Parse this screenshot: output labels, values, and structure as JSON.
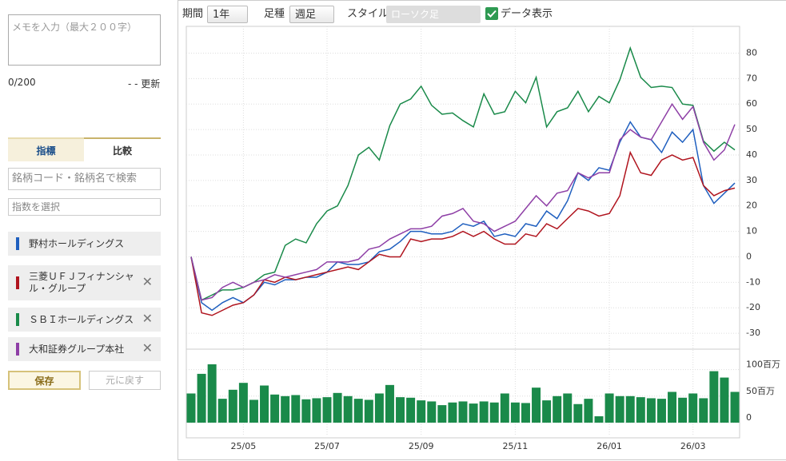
{
  "memo": {
    "placeholder": "メモを入力（最大２００字）",
    "count": "0/200",
    "update": "- - 更新"
  },
  "tabs": [
    "指標",
    "比較"
  ],
  "search_placeholder": "銘柄コード・銘柄名で検索",
  "index_placeholder": "指数を選択",
  "buttons": {
    "save": "保存",
    "reset": "元に戻す"
  },
  "toolbar": {
    "period_label": "期間",
    "period": "1年",
    "bar_label": "足種",
    "bar": "週足",
    "style_label": "スタイル",
    "style": "ローソク足",
    "show_data": "データ表示"
  },
  "chart_data": [
    {
      "type": "line",
      "categories": [
        null,
        null,
        null,
        null,
        null,
        "25/05",
        null,
        null,
        null,
        null,
        null,
        null,
        null,
        "25/07",
        null,
        null,
        null,
        null,
        null,
        null,
        null,
        null,
        "25/09",
        null,
        null,
        null,
        null,
        null,
        null,
        null,
        null,
        "25/11",
        null,
        null,
        null,
        null,
        null,
        null,
        null,
        null,
        "26/01",
        null,
        null,
        null,
        null,
        null,
        null,
        null,
        "26/03",
        null,
        null,
        null,
        null
      ],
      "ylim": [
        -35,
        88
      ],
      "yticks": [
        -30,
        -20,
        -10,
        0,
        10,
        20,
        30,
        40,
        50,
        60,
        70,
        80
      ],
      "grid": true,
      "series": [
        {
          "name": "野村ホールディングス",
          "color": "#1f5fbf",
          "values": [
            0,
            -18,
            -21,
            -18,
            -16,
            -18,
            -15,
            -10,
            -11,
            -9,
            -9,
            -8,
            -8,
            -6,
            -2,
            -3,
            -3,
            -2,
            2,
            3,
            6,
            10,
            10,
            9,
            9,
            10,
            13,
            12,
            14,
            8,
            9,
            8,
            13,
            12,
            18,
            15,
            22,
            33,
            30,
            35,
            34,
            45,
            53,
            47,
            46,
            41,
            49,
            45,
            50,
            28,
            21,
            25,
            29
          ]
        },
        {
          "name": "三菱ＵＦＪフィナンシャル・グループ",
          "color": "#b0141e",
          "values": [
            0,
            -22,
            -23,
            -21,
            -19,
            -18,
            -15,
            -9,
            -10,
            -8,
            -9,
            -8,
            -7,
            -6,
            -5,
            -4,
            -5,
            -2,
            1,
            0,
            0,
            7,
            6,
            7,
            7,
            8,
            10,
            8,
            10,
            7,
            5,
            5,
            9,
            8,
            13,
            11,
            15,
            19,
            18,
            16,
            17,
            24,
            41,
            33,
            32,
            38,
            40,
            38,
            39,
            28,
            24,
            26,
            27
          ]
        },
        {
          "name": "ＳＢＩホールディングス",
          "color": "#1a8a4a",
          "values": [
            0,
            -17,
            -15,
            -13,
            -13,
            -12,
            -10,
            -7,
            -6,
            4.5,
            7,
            5.5,
            13,
            18,
            20,
            28,
            40,
            43,
            38,
            51.5,
            60,
            62,
            67,
            59.5,
            56,
            56.5,
            53.5,
            51,
            64,
            56,
            57,
            65,
            60.5,
            70.5,
            51,
            57,
            58.5,
            65,
            57,
            63,
            60.5,
            69.5,
            82,
            70.5,
            66.5,
            67,
            66.5,
            60,
            59.5,
            45.5,
            41.5,
            45,
            42
          ]
        },
        {
          "name": "大和証券グループ本社",
          "color": "#8e3fa6",
          "values": [
            0,
            -17,
            -16,
            -12,
            -10,
            -12,
            -10,
            -9,
            -7,
            -8,
            -7,
            -6,
            -5,
            -2,
            -2,
            -2,
            -1,
            3,
            4,
            7,
            9,
            11,
            11,
            12,
            16,
            17,
            19,
            14,
            13,
            10,
            12,
            14,
            19,
            24,
            20,
            25,
            26,
            33,
            31,
            33,
            33,
            46,
            50,
            47,
            46,
            53,
            60,
            54,
            59,
            45,
            38,
            42,
            52
          ]
        }
      ]
    },
    {
      "type": "bar",
      "color": "#1a8a4a",
      "ylim": [
        0,
        125
      ],
      "yticks": [
        0,
        {
          "value": 50,
          "label": "50百万"
        },
        {
          "value": 100,
          "label": "100百万"
        }
      ],
      "values": [
        55,
        92,
        110,
        45,
        62,
        75,
        43,
        70,
        53,
        50,
        52,
        44,
        46,
        48,
        56,
        50,
        45,
        43,
        55,
        71,
        48,
        47,
        42,
        40,
        33,
        38,
        40,
        36,
        40,
        38,
        55,
        38,
        37,
        66,
        42,
        50,
        55,
        35,
        45,
        12,
        55,
        50,
        50,
        48,
        46,
        45,
        58,
        47,
        55,
        46,
        97,
        85,
        58
      ]
    }
  ]
}
